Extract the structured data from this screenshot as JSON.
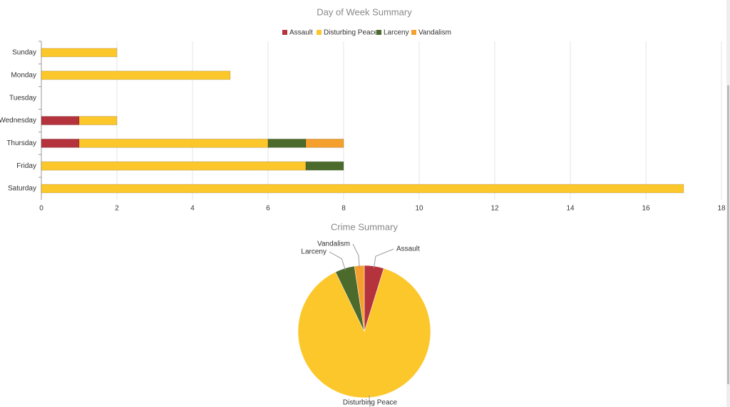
{
  "chart_data": [
    {
      "type": "bar",
      "title": "Day of Week Summary",
      "categories": [
        "Sunday",
        "Monday",
        "Tuesday",
        "Wednesday",
        "Thursday",
        "Friday",
        "Saturday"
      ],
      "series": [
        {
          "name": "Assault",
          "color": "#b5333d",
          "values": [
            0,
            0,
            0,
            1,
            1,
            0,
            0
          ]
        },
        {
          "name": "Disturbing Peace",
          "color": "#fcc72a",
          "values": [
            2,
            5,
            0,
            1,
            5,
            7,
            17
          ]
        },
        {
          "name": "Larceny",
          "color": "#4b6a2b",
          "values": [
            0,
            0,
            0,
            0,
            1,
            1,
            0
          ]
        },
        {
          "name": "Vandalism",
          "color": "#f5a02c",
          "values": [
            0,
            0,
            0,
            0,
            1,
            0,
            0
          ]
        }
      ],
      "xlim": [
        0,
        18
      ],
      "xticks": [
        0,
        2,
        4,
        6,
        8,
        10,
        12,
        14,
        16,
        18
      ],
      "grid": true,
      "legend": "top"
    },
    {
      "type": "pie",
      "title": "Crime Summary",
      "categories": [
        "Assault",
        "Disturbing Peace",
        "Larceny",
        "Vandalism"
      ],
      "values": [
        2,
        37,
        2,
        1
      ],
      "colors": [
        "#b5333d",
        "#fcc72a",
        "#4b6a2b",
        "#f5a02c"
      ]
    }
  ]
}
